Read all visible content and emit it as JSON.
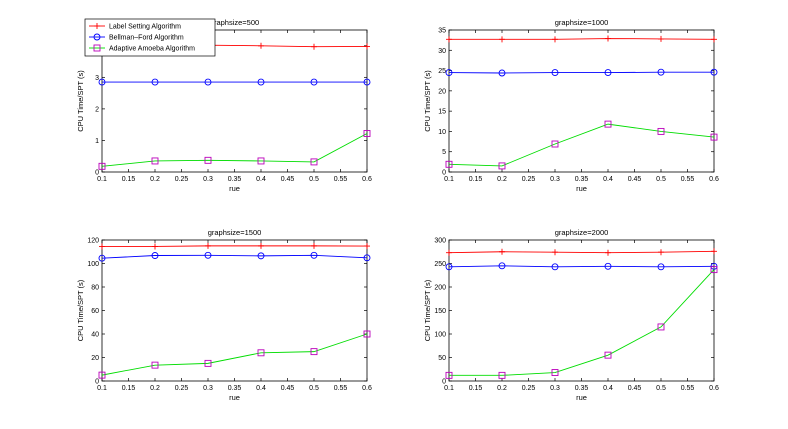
{
  "chart_data": [
    {
      "type": "line",
      "title": "graphsize=500",
      "xlabel": "rue",
      "ylabel": "CPU Time/SPT (s)",
      "x": [
        0.1,
        0.2,
        0.3,
        0.4,
        0.5,
        0.6
      ],
      "xlim": [
        0.1,
        0.6
      ],
      "xticks": [
        "0.1",
        "0.15",
        "0.2",
        "0.25",
        "0.3",
        "0.35",
        "0.4",
        "0.45",
        "0.5",
        "0.55",
        "0.6"
      ],
      "ylim": [
        0,
        4.5
      ],
      "yticks": [
        "0",
        "1",
        "2",
        "3",
        "4"
      ],
      "series": [
        {
          "name": "Label Setting Algorithm",
          "values": [
            4.0,
            3.97,
            4.02,
            4.0,
            3.97,
            3.98
          ]
        },
        {
          "name": "Bellman–Ford Algorithm",
          "values": [
            2.85,
            2.85,
            2.85,
            2.85,
            2.85,
            2.85
          ]
        },
        {
          "name": "Adaptive Amoeba Algorithm",
          "values": [
            0.18,
            0.35,
            0.37,
            0.35,
            0.32,
            1.22
          ]
        }
      ],
      "legend": "top-left",
      "grid": false
    },
    {
      "type": "line",
      "title": "graphsize=1000",
      "xlabel": "rue",
      "ylabel": "CPU Time/SPT (s)",
      "x": [
        0.1,
        0.2,
        0.3,
        0.4,
        0.5,
        0.6
      ],
      "xlim": [
        0.1,
        0.6
      ],
      "xticks": [
        "0.1",
        "0.15",
        "0.2",
        "0.25",
        "0.3",
        "0.35",
        "0.4",
        "0.45",
        "0.5",
        "0.55",
        "0.6"
      ],
      "ylim": [
        0,
        35
      ],
      "yticks": [
        "0",
        "5",
        "10",
        "15",
        "20",
        "25",
        "30",
        "35"
      ],
      "series": [
        {
          "name": "Label Setting Algorithm",
          "values": [
            32.7,
            32.7,
            32.7,
            32.9,
            32.8,
            32.7
          ]
        },
        {
          "name": "Bellman–Ford Algorithm",
          "values": [
            24.5,
            24.4,
            24.5,
            24.5,
            24.6,
            24.6
          ]
        },
        {
          "name": "Adaptive Amoeba Algorithm",
          "values": [
            1.9,
            1.5,
            6.9,
            11.8,
            10.0,
            8.6
          ]
        }
      ],
      "grid": false
    },
    {
      "type": "line",
      "title": "graphsize=1500",
      "xlabel": "rue",
      "ylabel": "CPU Time/SPT (s)",
      "x": [
        0.1,
        0.2,
        0.3,
        0.4,
        0.5,
        0.6
      ],
      "xlim": [
        0.1,
        0.6
      ],
      "xticks": [
        "0.1",
        "0.15",
        "0.2",
        "0.25",
        "0.3",
        "0.35",
        "0.4",
        "0.45",
        "0.5",
        "0.55",
        "0.6"
      ],
      "ylim": [
        0,
        120
      ],
      "yticks": [
        "0",
        "20",
        "40",
        "60",
        "80",
        "100",
        "120"
      ],
      "series": [
        {
          "name": "Label Setting Algorithm",
          "values": [
            114.5,
            114.5,
            115.0,
            115.0,
            115.0,
            114.8
          ]
        },
        {
          "name": "Bellman–Ford Algorithm",
          "values": [
            104.5,
            106.8,
            107.0,
            106.5,
            107.0,
            104.8
          ]
        },
        {
          "name": "Adaptive Amoeba Algorithm",
          "values": [
            5.0,
            13.5,
            15.0,
            24.0,
            25.0,
            40.0
          ]
        }
      ],
      "grid": false
    },
    {
      "type": "line",
      "title": "graphsize=2000",
      "xlabel": "rue",
      "ylabel": "CPU Time/SPT (s)",
      "x": [
        0.1,
        0.2,
        0.3,
        0.4,
        0.5,
        0.6
      ],
      "xlim": [
        0.1,
        0.6
      ],
      "xticks": [
        "0.1",
        "0.15",
        "0.2",
        "0.25",
        "0.3",
        "0.35",
        "0.4",
        "0.45",
        "0.5",
        "0.55",
        "0.6"
      ],
      "ylim": [
        0,
        300
      ],
      "yticks": [
        "0",
        "50",
        "100",
        "150",
        "200",
        "250",
        "300"
      ],
      "series": [
        {
          "name": "Label Setting Algorithm",
          "values": [
            273,
            275,
            274,
            273,
            274,
            276
          ]
        },
        {
          "name": "Bellman–Ford Algorithm",
          "values": [
            243,
            245,
            243,
            244,
            243,
            244
          ]
        },
        {
          "name": "Adaptive Amoeba Algorithm",
          "values": [
            12,
            12,
            18,
            55,
            115,
            237
          ]
        }
      ],
      "grid": false
    }
  ],
  "styles": {
    "series_colors": [
      "#ff0000",
      "#0000ff",
      "#00dd00"
    ],
    "marker_colors": [
      "#ff0000",
      "#0000ff",
      "#bb00bb"
    ],
    "markers": [
      "plus",
      "circle",
      "square"
    ]
  }
}
